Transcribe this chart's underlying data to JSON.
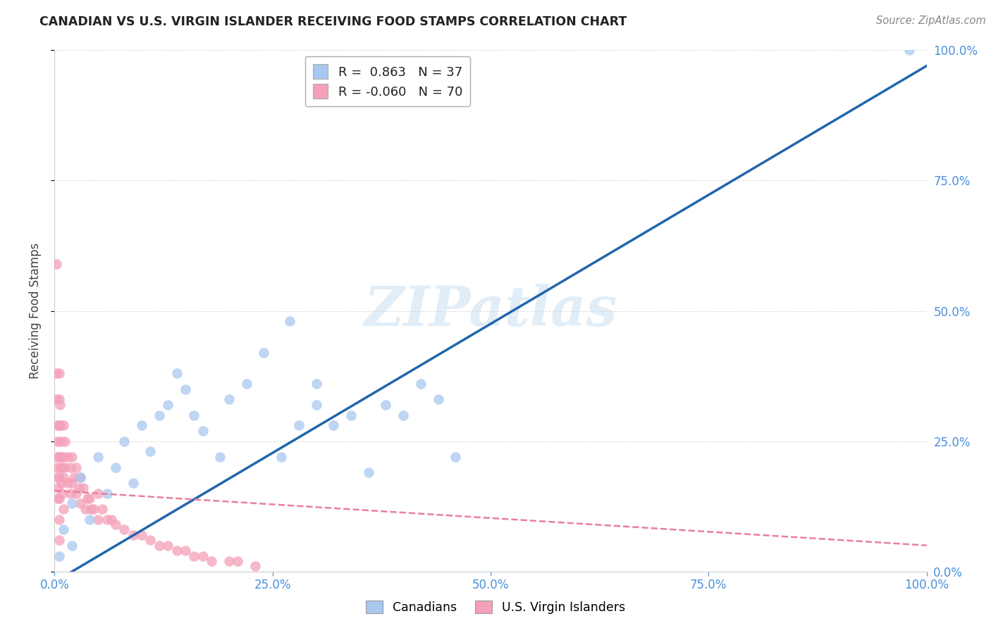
{
  "title": "CANADIAN VS U.S. VIRGIN ISLANDER RECEIVING FOOD STAMPS CORRELATION CHART",
  "source": "Source: ZipAtlas.com",
  "ylabel": "Receiving Food Stamps",
  "xlim": [
    0,
    1
  ],
  "ylim": [
    0,
    1
  ],
  "xtick_labels": [
    "0.0%",
    "25.0%",
    "50.0%",
    "75.0%",
    "100.0%"
  ],
  "xtick_vals": [
    0,
    0.25,
    0.5,
    0.75,
    1.0
  ],
  "ytick_labels": [
    "0.0%",
    "25.0%",
    "50.0%",
    "75.0%",
    "100.0%"
  ],
  "ytick_vals": [
    0,
    0.25,
    0.5,
    0.75,
    1.0
  ],
  "canadian_R": 0.863,
  "canadian_N": 37,
  "virgin_R": -0.06,
  "virgin_N": 70,
  "canadian_color": "#a8c8f0",
  "virgin_color": "#f4a0b8",
  "canadian_line_color": "#2166ac",
  "virgin_line_color": "#e87fa0",
  "background_color": "#ffffff",
  "watermark": "ZIPatlas",
  "title_color": "#222222",
  "source_color": "#888888",
  "axis_color": "#4a90d9",
  "ylabel_color": "#444444",
  "grid_color": "#dddddd",
  "legend_text_color": "#222222",
  "legend_value_color": "#3399cc",
  "canadian_scatter_x": [
    0.005,
    0.01,
    0.02,
    0.02,
    0.03,
    0.04,
    0.05,
    0.06,
    0.07,
    0.08,
    0.09,
    0.1,
    0.11,
    0.12,
    0.13,
    0.14,
    0.15,
    0.16,
    0.17,
    0.19,
    0.2,
    0.22,
    0.24,
    0.26,
    0.27,
    0.28,
    0.3,
    0.3,
    0.32,
    0.34,
    0.36,
    0.38,
    0.4,
    0.42,
    0.44,
    0.46,
    0.98
  ],
  "canadian_scatter_y": [
    0.03,
    0.08,
    0.05,
    0.13,
    0.18,
    0.1,
    0.22,
    0.15,
    0.2,
    0.25,
    0.17,
    0.28,
    0.23,
    0.3,
    0.32,
    0.38,
    0.35,
    0.3,
    0.27,
    0.22,
    0.33,
    0.36,
    0.42,
    0.22,
    0.48,
    0.28,
    0.32,
    0.36,
    0.28,
    0.3,
    0.19,
    0.32,
    0.3,
    0.36,
    0.33,
    0.22,
    1.0
  ],
  "virgin_scatter_x": [
    0.002,
    0.002,
    0.002,
    0.003,
    0.003,
    0.003,
    0.003,
    0.004,
    0.004,
    0.004,
    0.005,
    0.005,
    0.005,
    0.005,
    0.005,
    0.005,
    0.005,
    0.005,
    0.006,
    0.006,
    0.007,
    0.007,
    0.008,
    0.008,
    0.009,
    0.009,
    0.01,
    0.01,
    0.01,
    0.01,
    0.012,
    0.012,
    0.015,
    0.015,
    0.018,
    0.018,
    0.02,
    0.02,
    0.022,
    0.025,
    0.025,
    0.028,
    0.03,
    0.03,
    0.033,
    0.035,
    0.038,
    0.04,
    0.042,
    0.045,
    0.05,
    0.05,
    0.055,
    0.06,
    0.065,
    0.07,
    0.08,
    0.09,
    0.1,
    0.11,
    0.12,
    0.13,
    0.14,
    0.15,
    0.16,
    0.17,
    0.18,
    0.2,
    0.21,
    0.23
  ],
  "virgin_scatter_y": [
    0.59,
    0.38,
    0.33,
    0.28,
    0.25,
    0.22,
    0.2,
    0.18,
    0.16,
    0.14,
    0.38,
    0.33,
    0.28,
    0.22,
    0.18,
    0.14,
    0.1,
    0.06,
    0.32,
    0.28,
    0.25,
    0.2,
    0.22,
    0.17,
    0.2,
    0.15,
    0.28,
    0.22,
    0.18,
    0.12,
    0.25,
    0.2,
    0.22,
    0.17,
    0.2,
    0.15,
    0.22,
    0.17,
    0.18,
    0.2,
    0.15,
    0.16,
    0.18,
    0.13,
    0.16,
    0.12,
    0.14,
    0.14,
    0.12,
    0.12,
    0.15,
    0.1,
    0.12,
    0.1,
    0.1,
    0.09,
    0.08,
    0.07,
    0.07,
    0.06,
    0.05,
    0.05,
    0.04,
    0.04,
    0.03,
    0.03,
    0.02,
    0.02,
    0.02,
    0.01
  ],
  "can_line_x": [
    0.0,
    1.0
  ],
  "can_line_y": [
    -0.02,
    0.97
  ],
  "vir_line_x": [
    0.0,
    1.0
  ],
  "vir_line_y": [
    0.155,
    0.05
  ]
}
